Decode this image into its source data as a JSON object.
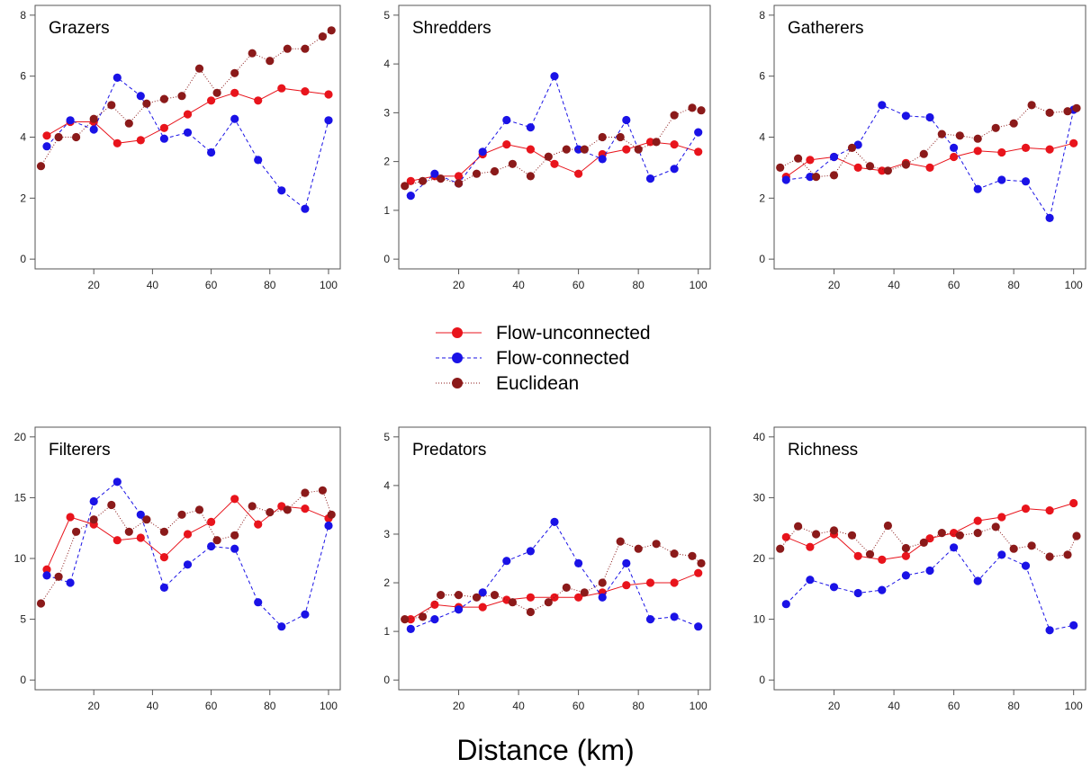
{
  "colors": {
    "flow_unconnected": "#e8141c",
    "flow_connected": "#1a12e6",
    "euclidean": "#8b1a1a",
    "axis": "#555555"
  },
  "figure": {
    "xlabel": "Distance (km)"
  },
  "legend": {
    "placement": "center",
    "entries": [
      "Flow-unconnected",
      "Flow-connected",
      "Euclidean"
    ]
  },
  "chart_data": [
    {
      "type": "line",
      "title": "Grazers",
      "xlim": [
        0,
        104
      ],
      "ylim": [
        0,
        8
      ],
      "xticks": [
        20,
        40,
        60,
        80,
        100
      ],
      "yticks": [
        0,
        2,
        4,
        6,
        8
      ],
      "series": [
        {
          "name": "Flow-unconnected",
          "x": [
            4,
            12,
            20,
            28,
            36,
            44,
            52,
            60,
            68,
            76,
            84,
            92,
            100
          ],
          "y": [
            4.05,
            4.5,
            4.5,
            3.8,
            3.9,
            4.3,
            4.75,
            5.2,
            5.45,
            5.2,
            5.6,
            5.5,
            5.4
          ]
        },
        {
          "name": "Flow-connected",
          "x": [
            4,
            12,
            20,
            28,
            36,
            44,
            52,
            60,
            68,
            76,
            84,
            92,
            100
          ],
          "y": [
            3.7,
            4.55,
            4.25,
            5.95,
            5.35,
            3.95,
            4.15,
            3.5,
            4.6,
            3.25,
            2.25,
            1.65,
            4.55
          ]
        },
        {
          "name": "Euclidean",
          "x": [
            2,
            8,
            14,
            20,
            26,
            32,
            38,
            44,
            50,
            56,
            62,
            68,
            74,
            80,
            86,
            92,
            98,
            101
          ],
          "y": [
            3.05,
            4.0,
            4.0,
            4.6,
            5.05,
            4.45,
            5.1,
            5.25,
            5.35,
            6.25,
            5.45,
            6.1,
            6.75,
            6.5,
            6.9,
            6.9,
            7.3,
            7.5
          ]
        }
      ]
    },
    {
      "type": "line",
      "title": "Shredders",
      "xlim": [
        0,
        104
      ],
      "ylim": [
        0,
        5
      ],
      "xticks": [
        20,
        40,
        60,
        80,
        100
      ],
      "yticks": [
        0,
        1,
        2,
        3,
        4,
        5
      ],
      "series": [
        {
          "name": "Flow-unconnected",
          "x": [
            4,
            12,
            20,
            28,
            36,
            44,
            52,
            60,
            68,
            76,
            84,
            92,
            100
          ],
          "y": [
            1.6,
            1.7,
            1.7,
            2.15,
            2.35,
            2.25,
            1.95,
            1.75,
            2.15,
            2.25,
            2.4,
            2.35,
            2.2
          ]
        },
        {
          "name": "Flow-connected",
          "x": [
            4,
            12,
            20,
            28,
            36,
            44,
            52,
            60,
            68,
            76,
            84,
            92,
            100
          ],
          "y": [
            1.3,
            1.75,
            1.55,
            2.2,
            2.85,
            2.7,
            3.75,
            2.25,
            2.05,
            2.85,
            1.65,
            1.85,
            2.6
          ]
        },
        {
          "name": "Euclidean",
          "x": [
            2,
            8,
            14,
            20,
            26,
            32,
            38,
            44,
            50,
            56,
            62,
            68,
            74,
            80,
            86,
            92,
            98,
            101
          ],
          "y": [
            1.5,
            1.6,
            1.65,
            1.55,
            1.75,
            1.8,
            1.95,
            1.7,
            2.1,
            2.25,
            2.25,
            2.5,
            2.5,
            2.25,
            2.4,
            2.95,
            3.1,
            3.05
          ]
        }
      ]
    },
    {
      "type": "line",
      "title": "Gatherers",
      "xlim": [
        0,
        104
      ],
      "ylim": [
        0,
        8
      ],
      "xticks": [
        20,
        40,
        60,
        80,
        100
      ],
      "yticks": [
        0,
        2,
        4,
        6,
        8
      ],
      "series": [
        {
          "name": "Flow-unconnected",
          "x": [
            4,
            12,
            20,
            28,
            36,
            44,
            52,
            60,
            68,
            76,
            84,
            92,
            100
          ],
          "y": [
            2.7,
            3.25,
            3.35,
            3.0,
            2.9,
            3.15,
            3.0,
            3.35,
            3.55,
            3.5,
            3.65,
            3.6,
            3.8
          ]
        },
        {
          "name": "Flow-connected",
          "x": [
            4,
            12,
            20,
            28,
            36,
            44,
            52,
            60,
            68,
            76,
            84,
            92,
            100
          ],
          "y": [
            2.6,
            2.7,
            3.35,
            3.75,
            5.05,
            4.7,
            4.65,
            3.65,
            2.3,
            2.6,
            2.55,
            1.35,
            4.9
          ]
        },
        {
          "name": "Euclidean",
          "x": [
            2,
            8,
            14,
            20,
            26,
            32,
            38,
            44,
            50,
            56,
            62,
            68,
            74,
            80,
            86,
            92,
            98,
            101
          ],
          "y": [
            3.0,
            3.3,
            2.7,
            2.75,
            3.65,
            3.05,
            2.9,
            3.1,
            3.45,
            4.1,
            4.05,
            3.95,
            4.3,
            4.45,
            5.05,
            4.8,
            4.85,
            4.95
          ]
        }
      ]
    },
    {
      "type": "line",
      "title": "Filterers",
      "xlim": [
        0,
        104
      ],
      "ylim": [
        0,
        20
      ],
      "xticks": [
        20,
        40,
        60,
        80,
        100
      ],
      "yticks": [
        0,
        5,
        10,
        15,
        20
      ],
      "series": [
        {
          "name": "Flow-unconnected",
          "x": [
            4,
            12,
            20,
            28,
            36,
            44,
            52,
            60,
            68,
            76,
            84,
            92,
            100
          ],
          "y": [
            9.1,
            13.4,
            12.8,
            11.5,
            11.7,
            10.1,
            12.0,
            13.0,
            14.9,
            12.8,
            14.3,
            14.1,
            13.3
          ]
        },
        {
          "name": "Flow-connected",
          "x": [
            4,
            12,
            20,
            28,
            36,
            44,
            52,
            60,
            68,
            76,
            84,
            92,
            100
          ],
          "y": [
            8.6,
            8.0,
            14.7,
            16.3,
            13.6,
            7.6,
            9.5,
            11.0,
            10.8,
            6.4,
            4.4,
            5.4,
            12.7
          ]
        },
        {
          "name": "Euclidean",
          "x": [
            2,
            8,
            14,
            20,
            26,
            32,
            38,
            44,
            50,
            56,
            62,
            68,
            74,
            80,
            86,
            92,
            98,
            101
          ],
          "y": [
            6.3,
            8.5,
            12.2,
            13.2,
            14.4,
            12.2,
            13.2,
            12.2,
            13.6,
            14.0,
            11.5,
            11.9,
            14.3,
            13.8,
            14.0,
            15.4,
            15.6,
            13.6
          ]
        }
      ]
    },
    {
      "type": "line",
      "title": "Predators",
      "xlim": [
        0,
        104
      ],
      "ylim": [
        0,
        5
      ],
      "xticks": [
        20,
        40,
        60,
        80,
        100
      ],
      "yticks": [
        0,
        1,
        2,
        3,
        4,
        5
      ],
      "series": [
        {
          "name": "Flow-unconnected",
          "x": [
            4,
            12,
            20,
            28,
            36,
            44,
            52,
            60,
            68,
            76,
            84,
            92,
            100
          ],
          "y": [
            1.25,
            1.55,
            1.5,
            1.5,
            1.65,
            1.7,
            1.7,
            1.7,
            1.8,
            1.95,
            2.0,
            2.0,
            2.2
          ]
        },
        {
          "name": "Flow-connected",
          "x": [
            4,
            12,
            20,
            28,
            36,
            44,
            52,
            60,
            68,
            76,
            84,
            92,
            100
          ],
          "y": [
            1.05,
            1.25,
            1.45,
            1.8,
            2.45,
            2.65,
            3.25,
            2.4,
            1.7,
            2.4,
            1.25,
            1.3,
            1.1
          ]
        },
        {
          "name": "Euclidean",
          "x": [
            2,
            8,
            14,
            20,
            26,
            32,
            38,
            44,
            50,
            56,
            62,
            68,
            74,
            80,
            86,
            92,
            98,
            101
          ],
          "y": [
            1.25,
            1.3,
            1.75,
            1.75,
            1.7,
            1.75,
            1.6,
            1.4,
            1.6,
            1.9,
            1.8,
            2.0,
            2.85,
            2.7,
            2.8,
            2.6,
            2.55,
            2.4
          ]
        }
      ]
    },
    {
      "type": "line",
      "title": "Richness",
      "xlim": [
        0,
        104
      ],
      "ylim": [
        0,
        40
      ],
      "xticks": [
        20,
        40,
        60,
        80,
        100
      ],
      "yticks": [
        0,
        10,
        20,
        30,
        40
      ],
      "series": [
        {
          "name": "Flow-unconnected",
          "x": [
            4,
            12,
            20,
            28,
            36,
            44,
            52,
            60,
            68,
            76,
            84,
            92,
            100
          ],
          "y": [
            23.5,
            21.9,
            24.0,
            20.4,
            19.8,
            20.4,
            23.3,
            24.2,
            26.2,
            26.8,
            28.2,
            27.9,
            29.1
          ]
        },
        {
          "name": "Flow-connected",
          "x": [
            4,
            12,
            20,
            28,
            36,
            44,
            52,
            60,
            68,
            76,
            84,
            92,
            100
          ],
          "y": [
            12.5,
            16.5,
            15.3,
            14.3,
            14.8,
            17.2,
            18.0,
            21.8,
            16.3,
            20.6,
            18.8,
            8.2,
            9.0
          ]
        },
        {
          "name": "Euclidean",
          "x": [
            2,
            8,
            14,
            20,
            26,
            32,
            38,
            44,
            50,
            56,
            62,
            68,
            74,
            80,
            86,
            92,
            98,
            101
          ],
          "y": [
            21.6,
            25.3,
            24.0,
            24.6,
            23.8,
            20.7,
            25.4,
            21.7,
            22.6,
            24.2,
            23.8,
            24.2,
            25.2,
            21.6,
            22.1,
            20.3,
            20.6,
            23.7
          ]
        }
      ]
    }
  ]
}
